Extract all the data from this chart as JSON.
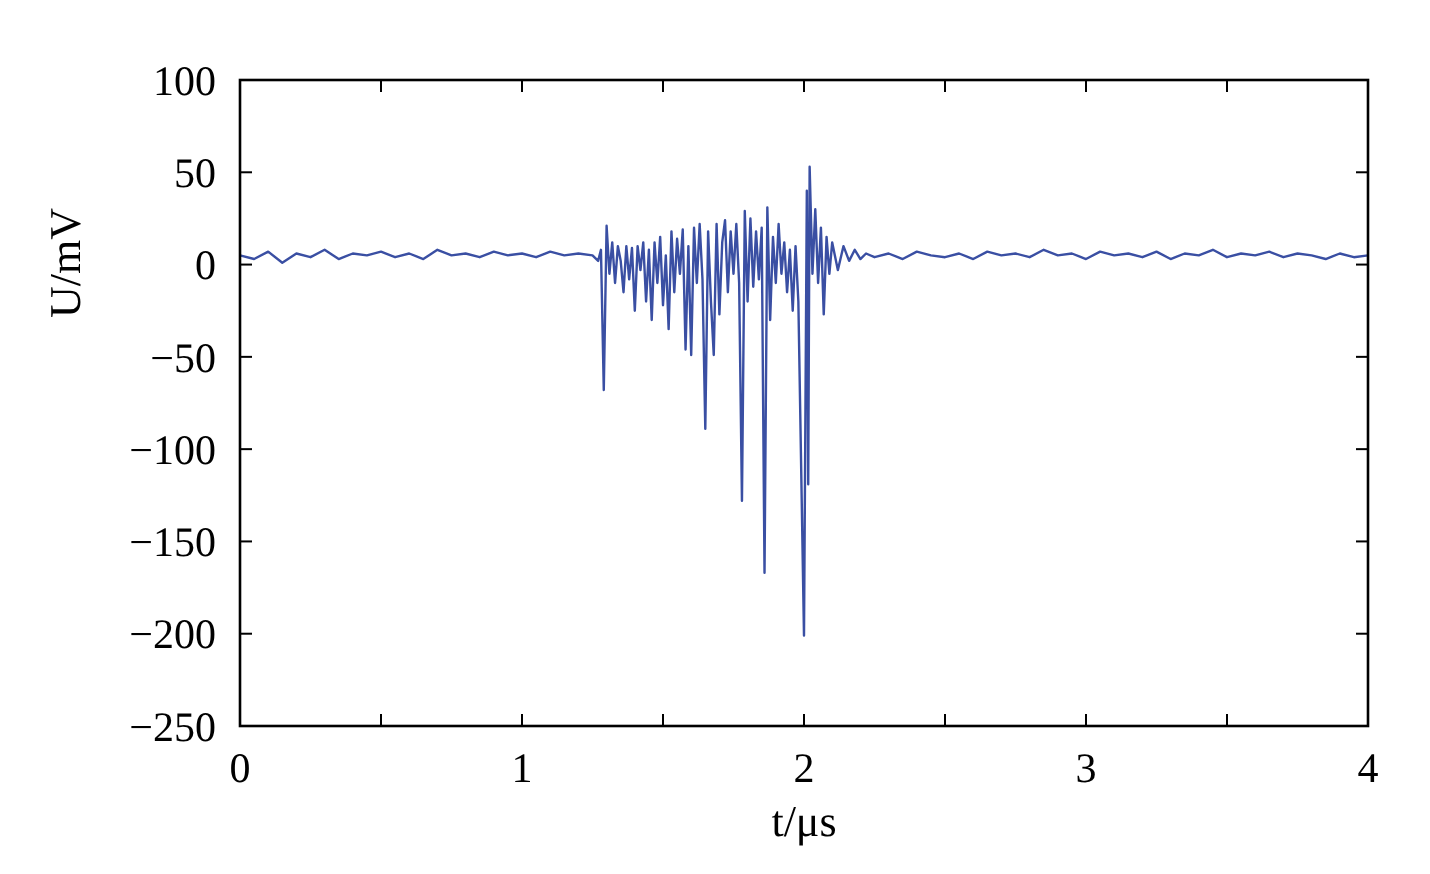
{
  "chart_data": {
    "type": "line",
    "xlabel": "t/μs",
    "ylabel": "U/mV",
    "xlim": [
      0,
      4
    ],
    "xticks": [
      0,
      {
        "value": 0.5,
        "label": null
      },
      1,
      {
        "value": 1.5,
        "label": null
      },
      2,
      {
        "value": 2.5,
        "label": null
      },
      3,
      {
        "value": 3.5,
        "label": null
      },
      4
    ],
    "ylim": [
      -250,
      100
    ],
    "yticks": [
      -250,
      -200,
      -150,
      -100,
      -50,
      0,
      50,
      100
    ],
    "grid": false,
    "marker": "none",
    "line_style": "solid",
    "series": [
      {
        "color": "#3a4fa3",
        "x": [
          0,
          0.05,
          0.1,
          0.15,
          0.2,
          0.25,
          0.3,
          0.35,
          0.4,
          0.45,
          0.5,
          0.55,
          0.6,
          0.65,
          0.7,
          0.75,
          0.8,
          0.85,
          0.9,
          0.95,
          1,
          1.05,
          1.1,
          1.15,
          1.2,
          1.25,
          1.27,
          1.28,
          1.29,
          1.3,
          1.31,
          1.32,
          1.33,
          1.34,
          1.35,
          1.36,
          1.37,
          1.38,
          1.39,
          1.4,
          1.41,
          1.42,
          1.43,
          1.44,
          1.45,
          1.46,
          1.47,
          1.48,
          1.49,
          1.5,
          1.51,
          1.52,
          1.53,
          1.54,
          1.55,
          1.56,
          1.57,
          1.58,
          1.59,
          1.6,
          1.61,
          1.62,
          1.63,
          1.64,
          1.65,
          1.66,
          1.67,
          1.68,
          1.69,
          1.7,
          1.71,
          1.72,
          1.73,
          1.74,
          1.75,
          1.76,
          1.77,
          1.78,
          1.79,
          1.8,
          1.81,
          1.82,
          1.83,
          1.84,
          1.85,
          1.86,
          1.87,
          1.88,
          1.89,
          1.9,
          1.91,
          1.92,
          1.93,
          1.94,
          1.95,
          1.96,
          1.97,
          1.98,
          2,
          2.01,
          2.015,
          2.02,
          2.03,
          2.04,
          2.05,
          2.06,
          2.07,
          2.08,
          2.09,
          2.1,
          2.12,
          2.14,
          2.16,
          2.18,
          2.2,
          2.22,
          2.25,
          2.3,
          2.35,
          2.4,
          2.45,
          2.5,
          2.55,
          2.6,
          2.65,
          2.7,
          2.75,
          2.8,
          2.85,
          2.9,
          2.95,
          3,
          3.05,
          3.1,
          3.15,
          3.2,
          3.25,
          3.3,
          3.35,
          3.4,
          3.45,
          3.5,
          3.55,
          3.6,
          3.65,
          3.7,
          3.75,
          3.8,
          3.85,
          3.9,
          3.95,
          4
        ],
        "values": [
          5,
          3,
          7,
          1,
          6,
          4,
          8,
          3,
          6,
          5,
          7,
          4,
          6,
          3,
          8,
          5,
          6,
          4,
          7,
          5,
          6,
          4,
          7,
          5,
          6,
          5,
          2,
          8,
          -68,
          21,
          -5,
          12,
          -10,
          10,
          2,
          -15,
          10,
          -8,
          9,
          -25,
          10,
          -3,
          12,
          -20,
          8,
          -30,
          12,
          -10,
          15,
          -22,
          5,
          -35,
          18,
          -15,
          14,
          -5,
          19,
          -46,
          10,
          -49,
          20,
          -10,
          22,
          -8,
          -89,
          18,
          -20,
          -49,
          22,
          -27,
          12,
          24,
          -15,
          18,
          -5,
          22,
          -10,
          -128,
          29,
          -20,
          25,
          -12,
          18,
          -8,
          20,
          -167,
          31,
          -30,
          15,
          -10,
          22,
          -5,
          12,
          -15,
          8,
          -25,
          10,
          -20,
          -201,
          40,
          -119,
          53,
          -5,
          30,
          -10,
          20,
          -27,
          15,
          -5,
          12,
          -3,
          10,
          2,
          8,
          3,
          6,
          4,
          6,
          3,
          7,
          5,
          4,
          6,
          3,
          7,
          5,
          6,
          4,
          8,
          5,
          6,
          3,
          7,
          5,
          6,
          4,
          7,
          3,
          6,
          5,
          8,
          4,
          6,
          5,
          7,
          4,
          6,
          5,
          3,
          6,
          4,
          5
        ]
      }
    ]
  }
}
